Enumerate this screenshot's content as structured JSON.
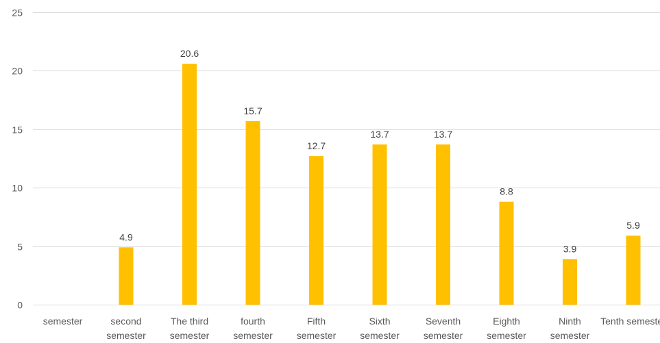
{
  "chart_data": {
    "type": "bar",
    "title": "",
    "xlabel": "",
    "ylabel": "",
    "ylim": [
      0,
      25
    ],
    "yticks": [
      0,
      5,
      10,
      15,
      20,
      25
    ],
    "grid": true,
    "legend": "none",
    "bar_color": "#FFC000",
    "grid_color": "#D9D9D9",
    "categories": [
      [
        "semester"
      ],
      [
        "second",
        "semester"
      ],
      [
        "The third",
        "semester"
      ],
      [
        "fourth",
        "semester"
      ],
      [
        "Fifth",
        "semester"
      ],
      [
        "Sixth",
        "semester"
      ],
      [
        "Seventh",
        "semester"
      ],
      [
        "Eighth",
        "semester"
      ],
      [
        "Ninth",
        "semester"
      ],
      [
        "Tenth semester"
      ]
    ],
    "values": [
      null,
      4.9,
      20.6,
      15.7,
      12.7,
      13.7,
      13.7,
      8.8,
      3.9,
      5.9
    ],
    "data_labels": [
      "",
      "4.9",
      "20.6",
      "15.7",
      "12.7",
      "13.7",
      "13.7",
      "8.8",
      "3.9",
      "5.9"
    ]
  }
}
